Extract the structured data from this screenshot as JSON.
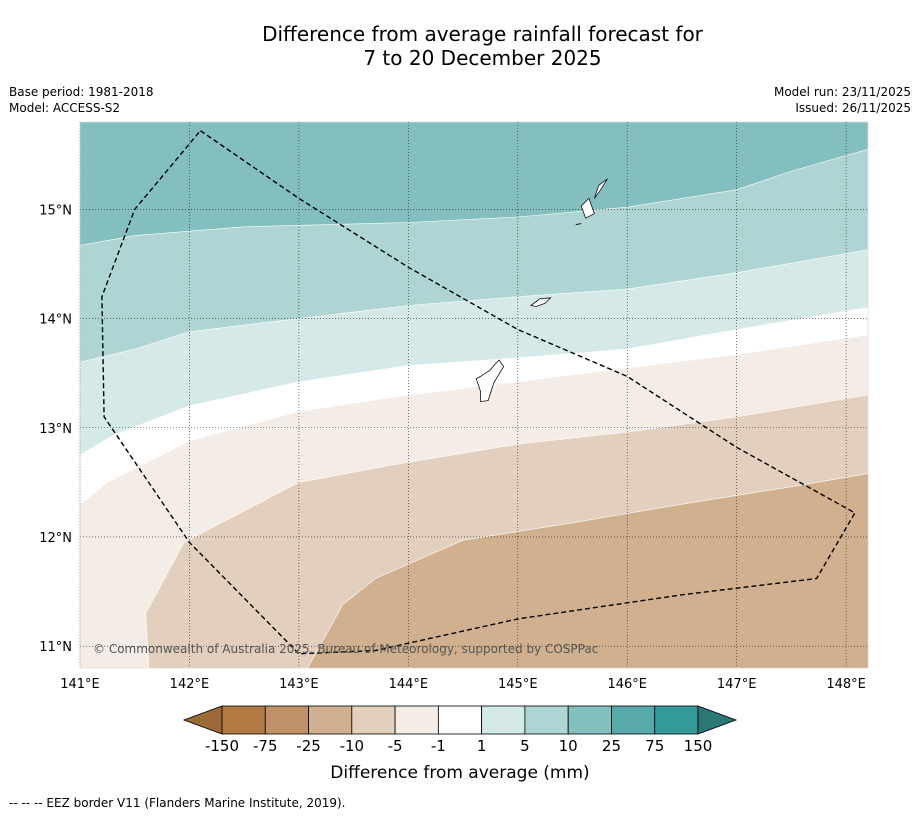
{
  "header": {
    "title_line1": "Difference from average rainfall forecast for",
    "title_line2": "7 to 20 December 2025",
    "base_period": "Base period: 1981-2018",
    "model": "Model: ACCESS-S2",
    "model_run": "Model run: 23/11/2025",
    "issued": "Issued: 26/11/2025"
  },
  "chart_data": {
    "type": "heatmap",
    "title": "Difference from average rainfall forecast for 7 to 20 December 2025",
    "x_range": [
      141.0,
      148.2
    ],
    "y_range": [
      10.8,
      15.8
    ],
    "x_ticks": [
      141,
      142,
      143,
      144,
      145,
      146,
      147,
      148
    ],
    "x_tick_labels": [
      "141°E",
      "142°E",
      "143°E",
      "144°E",
      "145°E",
      "146°E",
      "147°E",
      "148°E"
    ],
    "y_ticks": [
      11,
      12,
      13,
      14,
      15
    ],
    "y_tick_labels": [
      "11°N",
      "12°N",
      "13°N",
      "14°N",
      "15°N"
    ],
    "grid": true,
    "copyright": "© Commonwealth of Australia 2025, Bureau of Meteorology, supported by COSPPac",
    "bands": [
      {
        "range": "10 to 25",
        "color": "#84bfbf",
        "upper_boundary": null,
        "lower_boundary": [
          [
            141.0,
            14.67
          ],
          [
            141.5,
            14.76
          ],
          [
            142.5,
            14.84
          ],
          [
            144.0,
            14.88
          ],
          [
            145.0,
            14.93
          ],
          [
            146.0,
            15.02
          ],
          [
            147.0,
            15.18
          ],
          [
            147.5,
            15.35
          ],
          [
            148.2,
            15.55
          ]
        ]
      },
      {
        "range": "5 to 10",
        "color": "#aed5d4",
        "lower_boundary": [
          [
            141.0,
            13.6
          ],
          [
            141.5,
            13.72
          ],
          [
            142.0,
            13.88
          ],
          [
            143.0,
            14.0
          ],
          [
            144.0,
            14.12
          ],
          [
            145.0,
            14.2
          ],
          [
            146.0,
            14.27
          ],
          [
            147.0,
            14.42
          ],
          [
            148.2,
            14.63
          ]
        ]
      },
      {
        "range": "1 to 5",
        "color": "#d5e9e8",
        "lower_boundary": [
          [
            141.0,
            12.75
          ],
          [
            141.3,
            12.93
          ],
          [
            142.0,
            13.2
          ],
          [
            143.0,
            13.42
          ],
          [
            144.0,
            13.57
          ],
          [
            145.0,
            13.64
          ],
          [
            146.0,
            13.72
          ],
          [
            147.0,
            13.9
          ],
          [
            148.2,
            14.1
          ]
        ]
      },
      {
        "range": "-1 to 1",
        "color": "#ffffff",
        "lower_boundary": [
          [
            141.0,
            12.3
          ],
          [
            141.25,
            12.5
          ],
          [
            142.0,
            12.88
          ],
          [
            143.0,
            13.15
          ],
          [
            144.0,
            13.3
          ],
          [
            145.0,
            13.42
          ],
          [
            146.0,
            13.55
          ],
          [
            147.0,
            13.67
          ],
          [
            148.2,
            13.85
          ]
        ]
      },
      {
        "range": "-5 to -1",
        "color": "#f4ece6",
        "lower_boundary": [
          [
            141.63,
            10.8
          ],
          [
            141.6,
            11.3
          ],
          [
            141.95,
            11.95
          ],
          [
            143.0,
            12.5
          ],
          [
            143.8,
            12.65
          ],
          [
            145.0,
            12.85
          ],
          [
            146.0,
            12.96
          ],
          [
            147.0,
            13.1
          ],
          [
            148.2,
            13.3
          ]
        ]
      },
      {
        "range": "-10 to -5",
        "color": "#e2cfbe",
        "lower_boundary": [
          [
            143.08,
            10.8
          ],
          [
            143.4,
            11.38
          ],
          [
            143.7,
            11.62
          ],
          [
            144.5,
            11.97
          ],
          [
            145.5,
            12.13
          ],
          [
            146.5,
            12.3
          ],
          [
            147.5,
            12.46
          ],
          [
            148.2,
            12.58
          ]
        ]
      },
      {
        "range": "-25 to -10",
        "color": "#d1b08f",
        "lower_boundary": null
      }
    ],
    "eez_border": [
      [
        142.1,
        15.72
      ],
      [
        143.0,
        15.1
      ],
      [
        144.0,
        14.47
      ],
      [
        145.0,
        13.9
      ],
      [
        146.0,
        13.47
      ],
      [
        147.0,
        12.82
      ],
      [
        148.08,
        12.22
      ],
      [
        147.73,
        11.62
      ],
      [
        146.5,
        11.47
      ],
      [
        145.0,
        11.25
      ],
      [
        143.7,
        10.96
      ],
      [
        143.0,
        10.93
      ],
      [
        142.0,
        11.95
      ],
      [
        141.22,
        13.1
      ],
      [
        141.2,
        14.2
      ],
      [
        141.5,
        15.0
      ],
      [
        142.1,
        15.72
      ]
    ],
    "islands": [
      [
        [
          144.62,
          13.45
        ],
        [
          144.66,
          13.47
        ],
        [
          144.75,
          13.53
        ],
        [
          144.79,
          13.58
        ],
        [
          144.83,
          13.62
        ],
        [
          144.87,
          13.56
        ],
        [
          144.78,
          13.41
        ],
        [
          144.73,
          13.25
        ],
        [
          144.66,
          13.24
        ],
        [
          144.66,
          13.33
        ],
        [
          144.62,
          13.45
        ]
      ],
      [
        [
          145.12,
          14.12
        ],
        [
          145.2,
          14.18
        ],
        [
          145.3,
          14.19
        ],
        [
          145.25,
          14.14
        ],
        [
          145.17,
          14.11
        ],
        [
          145.12,
          14.12
        ]
      ],
      [
        [
          145.58,
          15.03
        ],
        [
          145.65,
          15.1
        ],
        [
          145.7,
          14.96
        ],
        [
          145.62,
          14.92
        ],
        [
          145.58,
          15.03
        ]
      ],
      [
        [
          145.7,
          15.1
        ],
        [
          145.74,
          15.22
        ],
        [
          145.82,
          15.28
        ],
        [
          145.75,
          15.17
        ],
        [
          145.7,
          15.1
        ]
      ]
    ],
    "legend": {
      "label": "Difference from average (mm)",
      "ticks": [
        "-150",
        "-75",
        "-25",
        "-10",
        "-5",
        "-1",
        "1",
        "5",
        "10",
        "25",
        "75",
        "150"
      ],
      "colors": [
        "#9c6a38",
        "#b07a42",
        "#c09167",
        "#d1b08f",
        "#e2cfbe",
        "#f4ece6",
        "#ffffff",
        "#d5e9e8",
        "#aed5d4",
        "#84bfbf",
        "#58aaab",
        "#349a98",
        "#2b7776"
      ]
    }
  },
  "footer": {
    "legend_line": "--  --  -- EEZ border V11 (Flanders Marine Institute, 2019)."
  }
}
